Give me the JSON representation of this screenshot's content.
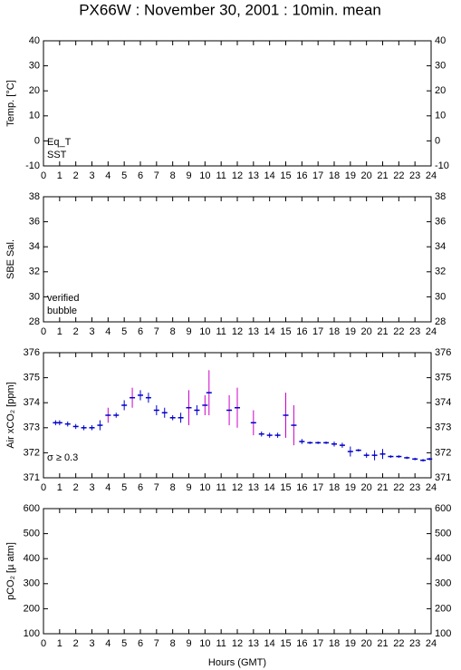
{
  "chart_data": [
    {
      "type": "line",
      "title": "PX66W : November 30, 2001 : 10min. mean",
      "ylabel": "Temp. [°C]",
      "xlim": [
        0,
        24
      ],
      "xticks": [
        0,
        1,
        2,
        3,
        4,
        5,
        6,
        7,
        8,
        9,
        10,
        11,
        12,
        13,
        14,
        15,
        16,
        17,
        18,
        19,
        20,
        21,
        22,
        23,
        24
      ],
      "ylim": [
        -10,
        40
      ],
      "yticks": [
        -10,
        0,
        10,
        20,
        30,
        40
      ],
      "x": [],
      "series": [
        {
          "name": "Eq_T",
          "color": "#cc0000",
          "values": []
        },
        {
          "name": "SST",
          "color": "#0000cc",
          "values": []
        }
      ]
    },
    {
      "type": "scatter",
      "ylabel": "SBE Sal.",
      "xlim": [
        0,
        24
      ],
      "xticks": [
        0,
        1,
        2,
        3,
        4,
        5,
        6,
        7,
        8,
        9,
        10,
        11,
        12,
        13,
        14,
        15,
        16,
        17,
        18,
        19,
        20,
        21,
        22,
        23,
        24
      ],
      "ylim": [
        28,
        38
      ],
      "yticks": [
        28,
        30,
        32,
        34,
        36,
        38
      ],
      "x": [],
      "series": [
        {
          "name": "verified",
          "color": "#0000cc",
          "values": []
        },
        {
          "name": "bubble",
          "color": "#cc00cc",
          "values": []
        }
      ]
    },
    {
      "type": "errorbar",
      "ylabel": "Air xCO₂ [ppm]",
      "xlim": [
        0,
        24
      ],
      "xticks": [
        0,
        1,
        2,
        3,
        4,
        5,
        6,
        7,
        8,
        9,
        10,
        11,
        12,
        13,
        14,
        15,
        16,
        17,
        18,
        19,
        20,
        21,
        22,
        23,
        24
      ],
      "ylim": [
        371,
        376
      ],
      "yticks": [
        371,
        372,
        373,
        374,
        375,
        376
      ],
      "x": [
        0.75,
        1,
        1.5,
        2,
        2.5,
        3,
        3.5,
        4,
        4.5,
        5,
        5.5,
        6,
        6.5,
        7,
        7.5,
        8,
        8.5,
        9,
        9.5,
        10,
        10.25,
        11.5,
        12,
        13,
        13.5,
        14,
        14.5,
        15,
        15.5,
        16,
        16.5,
        17,
        17.5,
        18,
        18.5,
        19,
        19.5,
        20,
        20.5,
        21,
        21.5,
        22,
        22.5,
        23,
        23.5,
        23.9
      ],
      "values": [
        373.2,
        373.2,
        373.15,
        373.05,
        373.0,
        373.0,
        373.1,
        373.5,
        373.5,
        373.9,
        374.2,
        374.3,
        374.2,
        373.7,
        373.6,
        373.4,
        373.4,
        373.8,
        373.7,
        373.9,
        374.4,
        373.7,
        373.8,
        373.2,
        372.75,
        372.7,
        372.7,
        373.5,
        373.1,
        372.45,
        372.4,
        372.4,
        372.4,
        372.35,
        372.3,
        372.05,
        372.1,
        371.9,
        371.9,
        371.95,
        371.85,
        371.85,
        371.8,
        371.75,
        371.7,
        371.75
      ],
      "errors": [
        0.1,
        0.1,
        0.1,
        0.1,
        0.1,
        0.1,
        0.2,
        0.3,
        0.1,
        0.2,
        0.4,
        0.2,
        0.2,
        0.2,
        0.2,
        0.1,
        0.2,
        0.7,
        0.2,
        0.4,
        0.9,
        0.6,
        0.8,
        0.5,
        0.1,
        0.1,
        0.1,
        0.9,
        0.8,
        0.1,
        0.05,
        0.05,
        0.05,
        0.1,
        0.1,
        0.2,
        0.05,
        0.1,
        0.2,
        0.2,
        0.05,
        0.05,
        0.05,
        0.05,
        0.05,
        0.05
      ],
      "color": "#0000cc",
      "high_error_color": "#cc00cc",
      "sigma_threshold": 0.3,
      "annotation": "σ ≥ 0.3"
    },
    {
      "type": "scatter",
      "ylabel": "pCO₂ [µ atm]",
      "xlabel": "Hours (GMT)",
      "xlim": [
        0,
        24
      ],
      "xticks": [
        0,
        1,
        2,
        3,
        4,
        5,
        6,
        7,
        8,
        9,
        10,
        11,
        12,
        13,
        14,
        15,
        16,
        17,
        18,
        19,
        20,
        21,
        22,
        23,
        24
      ],
      "ylim": [
        100,
        600
      ],
      "yticks": [
        100,
        200,
        300,
        400,
        500,
        600
      ],
      "x": [],
      "series": []
    }
  ]
}
